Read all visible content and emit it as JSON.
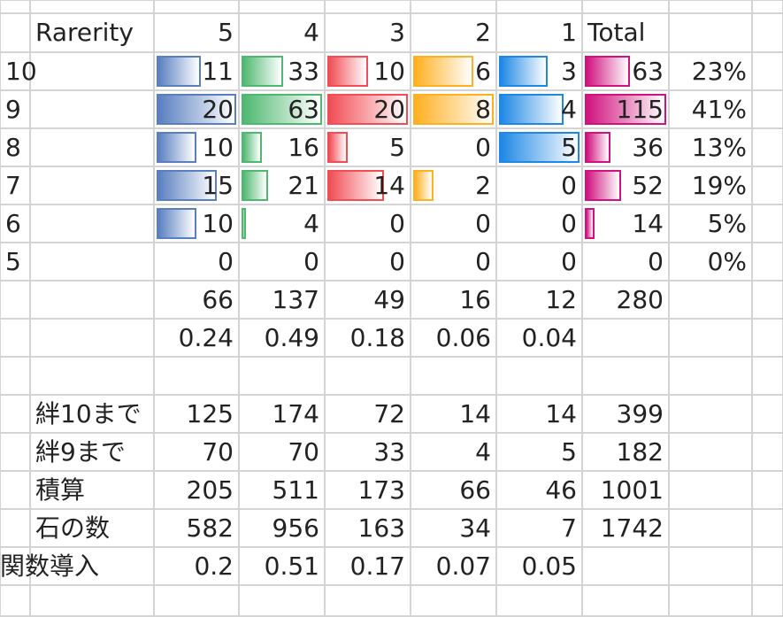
{
  "sheet": {
    "header": {
      "label": "Rarerity",
      "cols": [
        "5",
        "4",
        "3",
        "2",
        "1"
      ],
      "total": "Total"
    },
    "rows": [
      {
        "key": "10",
        "values": [
          "11",
          "33",
          "10",
          "6",
          "3"
        ],
        "total": "63",
        "pct": "23%",
        "bars": [
          0.55,
          0.52,
          0.5,
          0.75,
          0.6
        ],
        "total_bar": 0.55
      },
      {
        "key": "9",
        "values": [
          "20",
          "63",
          "20",
          "8",
          "4"
        ],
        "total": "115",
        "pct": "41%",
        "bars": [
          1.0,
          1.0,
          1.0,
          1.0,
          0.8
        ],
        "total_bar": 1.0
      },
      {
        "key": "8",
        "values": [
          "10",
          "16",
          "5",
          "0",
          "5"
        ],
        "total": "36",
        "pct": "13%",
        "bars": [
          0.5,
          0.25,
          0.25,
          0,
          1.0
        ],
        "total_bar": 0.31
      },
      {
        "key": "7",
        "values": [
          "15",
          "21",
          "14",
          "2",
          "0"
        ],
        "total": "52",
        "pct": "19%",
        "bars": [
          0.75,
          0.33,
          0.7,
          0.25,
          0
        ],
        "total_bar": 0.45
      },
      {
        "key": "6",
        "values": [
          "10",
          "4",
          "0",
          "0",
          "0"
        ],
        "total": "14",
        "pct": "5%",
        "bars": [
          0.5,
          0.06,
          0,
          0,
          0
        ],
        "total_bar": 0.12
      },
      {
        "key": "5",
        "values": [
          "0",
          "0",
          "0",
          "0",
          "0"
        ],
        "total": "0",
        "pct": "0%",
        "bars": [
          0,
          0,
          0,
          0,
          0
        ],
        "total_bar": 0
      }
    ],
    "sums": {
      "values": [
        "66",
        "137",
        "49",
        "16",
        "12"
      ],
      "total": "280"
    },
    "ratios": {
      "values": [
        "0.24",
        "0.49",
        "0.18",
        "0.06",
        "0.04"
      ]
    },
    "extra": [
      {
        "label": "絆10まで",
        "values": [
          "125",
          "174",
          "72",
          "14",
          "14"
        ],
        "total": "399"
      },
      {
        "label": "絆9まで",
        "values": [
          "70",
          "70",
          "33",
          "4",
          "5"
        ],
        "total": "182"
      },
      {
        "label": "積算",
        "values": [
          "205",
          "511",
          "173",
          "66",
          "46"
        ],
        "total": "1001"
      },
      {
        "label": "石の数",
        "values": [
          "582",
          "956",
          "163",
          "34",
          "7"
        ],
        "total": "1742"
      },
      {
        "label": "関数導入",
        "values": [
          "0.2",
          "0.51",
          "0.17",
          "0.07",
          "0.05"
        ],
        "total": ""
      }
    ],
    "bar_colors": [
      "#5a7fc0",
      "#4fb870",
      "#f24d55",
      "#ffb020",
      "#1e88e5"
    ],
    "total_bar_color": "#d0127e"
  }
}
